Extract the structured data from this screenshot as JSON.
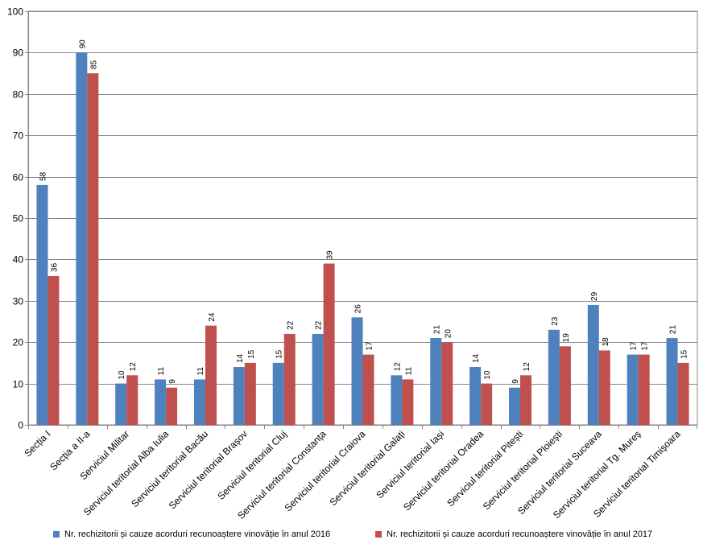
{
  "chart_data": {
    "type": "bar",
    "title": "",
    "xlabel": "",
    "ylabel": "",
    "ylim": [
      0,
      100
    ],
    "yticks": [
      0,
      10,
      20,
      30,
      40,
      50,
      60,
      70,
      80,
      90,
      100
    ],
    "grid": true,
    "legend_position": "bottom",
    "categories": [
      "Secția I",
      "Secția a II-a",
      "Serviciul Militar",
      "Serviciul teritorial Alba Iulia",
      "Serviciul teritorial Bacău",
      "Serviciul teritorial Brașov",
      "Serviciul teritorial Cluj",
      "Serviciul teritorial Constanța",
      "Serviciul teritorial Craiova",
      "Serviciul teritorial Galați",
      "Serviciul teritorial Iași",
      "Serviciul teritorial Oradea",
      "Serviciul teritorial Pitești",
      "Serviciul teritorial Ploiești",
      "Serviciul teritorial Suceava",
      "Serviciul teritorial Tg. Mureș",
      "Serviciul teritorial Timișoara"
    ],
    "series": [
      {
        "name": "Nr. rechizitorii și cauze acorduri recunoaștere vinovăție în anul 2016",
        "color": "#4F81BD",
        "values": [
          58,
          90,
          10,
          11,
          11,
          14,
          15,
          22,
          26,
          12,
          21,
          14,
          9,
          23,
          29,
          17,
          21
        ]
      },
      {
        "name": "Nr. rechizitorii și cauze acorduri recunoaștere vinovăție în anul 2017",
        "color": "#C0504D",
        "values": [
          36,
          85,
          12,
          9,
          24,
          15,
          22,
          39,
          17,
          11,
          20,
          10,
          12,
          19,
          18,
          17,
          15
        ]
      }
    ]
  }
}
